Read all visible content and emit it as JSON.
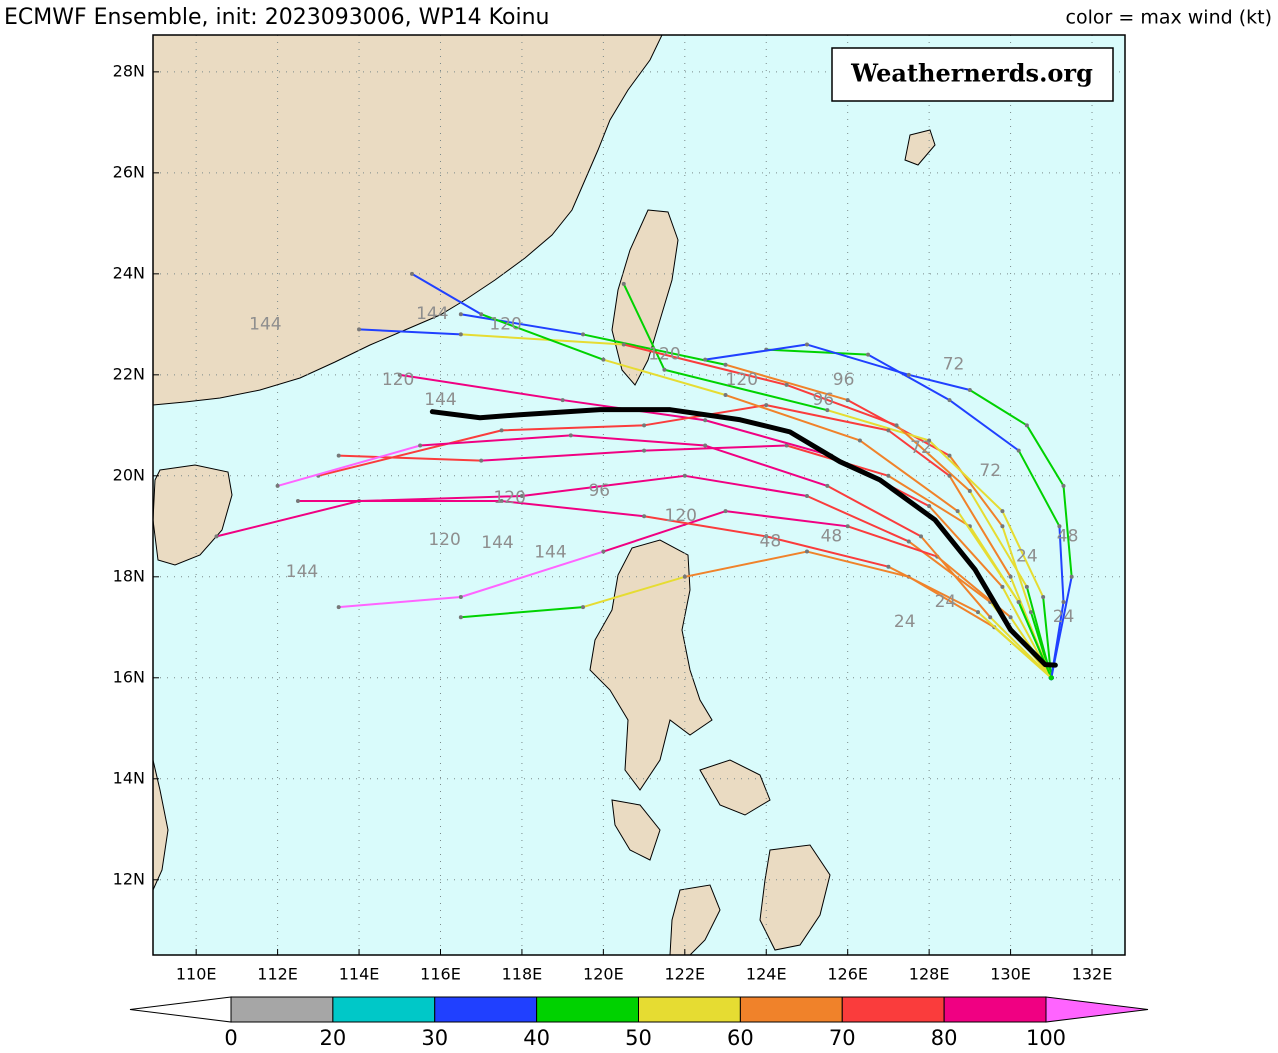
{
  "header": {
    "title": "ECMWF Ensemble, init: 2023093006, WP14 Koinu",
    "right": "color = max wind (kt)"
  },
  "watermark": "Weathernerds.org",
  "map": {
    "xlim": [
      108.94,
      132.81
    ],
    "ylim": [
      10.51,
      28.73
    ],
    "xticks": [
      {
        "value": 110,
        "label": "110E"
      },
      {
        "value": 112,
        "label": "112E"
      },
      {
        "value": 114,
        "label": "114E"
      },
      {
        "value": 116,
        "label": "116E"
      },
      {
        "value": 118,
        "label": "118E"
      },
      {
        "value": 120,
        "label": "120E"
      },
      {
        "value": 122,
        "label": "122E"
      },
      {
        "value": 124,
        "label": "124E"
      },
      {
        "value": 126,
        "label": "126E"
      },
      {
        "value": 128,
        "label": "128E"
      },
      {
        "value": 130,
        "label": "130E"
      },
      {
        "value": 132,
        "label": "132E"
      }
    ],
    "yticks": [
      {
        "value": 12,
        "label": "12N"
      },
      {
        "value": 14,
        "label": "14N"
      },
      {
        "value": 16,
        "label": "16N"
      },
      {
        "value": 18,
        "label": "18N"
      },
      {
        "value": 20,
        "label": "20N"
      },
      {
        "value": 22,
        "label": "22N"
      },
      {
        "value": 24,
        "label": "24N"
      },
      {
        "value": 26,
        "label": "26N"
      },
      {
        "value": 28,
        "label": "28N"
      }
    ],
    "grid": true,
    "ocean_color": "#d9fbfb"
  },
  "colorbar": {
    "bounds": [
      0,
      20,
      30,
      40,
      50,
      60,
      70,
      80,
      100
    ],
    "colors": [
      "#a6a6a6",
      "#00c8c8",
      "#2040ff",
      "#00d200",
      "#e6dc32",
      "#f0822a",
      "#fa3c3c",
      "#f00082"
    ],
    "under_color": "#ffffff",
    "over_color": "#ff64ff"
  },
  "tracks": [
    {
      "points": [
        [
          131,
          16
        ],
        [
          130.2,
          17.5
        ],
        [
          129,
          19
        ],
        [
          127,
          20
        ],
        [
          124.5,
          20.6
        ],
        [
          121,
          20.5
        ],
        [
          117,
          20.3
        ],
        [
          113.5,
          20.4
        ]
      ],
      "winds": [
        35,
        45,
        55,
        65,
        75,
        85,
        80,
        75
      ]
    },
    {
      "points": [
        [
          131,
          16
        ],
        [
          130.5,
          17.3
        ],
        [
          129.8,
          19
        ],
        [
          128.5,
          20.4
        ],
        [
          126,
          21.5
        ],
        [
          123,
          22.2
        ],
        [
          119.5,
          22.8
        ],
        [
          116.5,
          23.2
        ]
      ],
      "winds": [
        35,
        40,
        50,
        60,
        70,
        65,
        45,
        35
      ]
    },
    {
      "points": [
        [
          131,
          16
        ],
        [
          131.3,
          17.5
        ],
        [
          131.2,
          19
        ],
        [
          130.2,
          20.5
        ],
        [
          128.5,
          21.5
        ],
        [
          126.5,
          22.4
        ],
        [
          124,
          22.5
        ]
      ],
      "winds": [
        35,
        35,
        38,
        45,
        35,
        38,
        45
      ]
    },
    {
      "points": [
        [
          131,
          16
        ],
        [
          129.5,
          17.5
        ],
        [
          127.5,
          18.7
        ],
        [
          125,
          19.6
        ],
        [
          122,
          20
        ],
        [
          118,
          19.6
        ],
        [
          114,
          19.5
        ],
        [
          110.5,
          18.8
        ]
      ],
      "winds": [
        40,
        55,
        65,
        75,
        85,
        90,
        95,
        90
      ]
    },
    {
      "points": [
        [
          131,
          16
        ],
        [
          130,
          17.2
        ],
        [
          128.2,
          18.4
        ],
        [
          126,
          19
        ],
        [
          123,
          19.3
        ],
        [
          120,
          18.5
        ],
        [
          116.5,
          17.6
        ],
        [
          113.5,
          17.4
        ]
      ],
      "winds": [
        40,
        50,
        60,
        70,
        80,
        90,
        105,
        105
      ]
    },
    {
      "points": [
        [
          131,
          16
        ],
        [
          130.8,
          17.6
        ],
        [
          129.8,
          19.3
        ],
        [
          128,
          20.7
        ],
        [
          125.5,
          21.3
        ],
        [
          121.5,
          22.1
        ],
        [
          120.5,
          23.8
        ]
      ],
      "winds": [
        38,
        45,
        50,
        55,
        50,
        45,
        45
      ]
    },
    {
      "points": [
        [
          131,
          16
        ],
        [
          129.6,
          17
        ],
        [
          127.5,
          18
        ],
        [
          125,
          18.5
        ],
        [
          122,
          18
        ],
        [
          119.5,
          17.4
        ],
        [
          116.5,
          17.2
        ]
      ],
      "winds": [
        45,
        55,
        62,
        65,
        60,
        50,
        45
      ]
    },
    {
      "points": [
        [
          131,
          16
        ],
        [
          130.4,
          17.8
        ],
        [
          129,
          19.7
        ],
        [
          127.2,
          21
        ],
        [
          124.5,
          21.8
        ],
        [
          120.5,
          22.6
        ],
        [
          116.5,
          22.8
        ],
        [
          114,
          22.9
        ]
      ],
      "winds": [
        38,
        48,
        58,
        68,
        75,
        70,
        50,
        35
      ]
    },
    {
      "points": [
        [
          131,
          16
        ],
        [
          129.8,
          17.8
        ],
        [
          128,
          19.4
        ],
        [
          125.6,
          20.4
        ],
        [
          122.5,
          21.1
        ],
        [
          119,
          21.5
        ],
        [
          115,
          22
        ]
      ],
      "winds": [
        45,
        55,
        65,
        75,
        82,
        85,
        80
      ]
    },
    {
      "points": [
        [
          131,
          16
        ],
        [
          130,
          18
        ],
        [
          128.5,
          20
        ],
        [
          127,
          20.9
        ],
        [
          124,
          21.4
        ],
        [
          121,
          21
        ],
        [
          117.5,
          20.9
        ],
        [
          113,
          20
        ]
      ],
      "winds": [
        40,
        50,
        60,
        70,
        78,
        75,
        72,
        72
      ]
    },
    {
      "points": [
        [
          131,
          16
        ],
        [
          129.2,
          17.3
        ],
        [
          127,
          18.2
        ],
        [
          124,
          18.8
        ],
        [
          121,
          19.2
        ],
        [
          117.5,
          19.5
        ],
        [
          112.5,
          19.5
        ]
      ],
      "winds": [
        40,
        55,
        65,
        72,
        78,
        82,
        85
      ]
    },
    {
      "points": [
        [
          131,
          16
        ],
        [
          131.5,
          18
        ],
        [
          131.3,
          19.8
        ],
        [
          130.4,
          21
        ],
        [
          129,
          21.7
        ],
        [
          127.5,
          22
        ],
        [
          125,
          22.6
        ],
        [
          122.5,
          22.3
        ]
      ],
      "winds": [
        35,
        38,
        40,
        45,
        40,
        38,
        35,
        36
      ]
    },
    {
      "points": [
        [
          131,
          16
        ],
        [
          130.2,
          17.5
        ],
        [
          128.7,
          19.3
        ],
        [
          126.3,
          20.7
        ],
        [
          123,
          21.6
        ],
        [
          120,
          22.3
        ],
        [
          117,
          23.2
        ],
        [
          115.3,
          24
        ]
      ],
      "winds": [
        38,
        45,
        55,
        62,
        60,
        50,
        42,
        35
      ]
    },
    {
      "points": [
        [
          131,
          16
        ],
        [
          129.5,
          17.2
        ],
        [
          127.8,
          18.8
        ],
        [
          125.5,
          19.8
        ],
        [
          122.5,
          20.6
        ],
        [
          119.2,
          20.8
        ],
        [
          115.5,
          20.6
        ],
        [
          112,
          19.8
        ]
      ],
      "winds": [
        42,
        52,
        62,
        72,
        84,
        90,
        96,
        105
      ]
    }
  ],
  "mean_track": {
    "lon": [
      131.1,
      130.85,
      130.0,
      129.13,
      128.14,
      126.79,
      125.81,
      124.58,
      123.36,
      121.64,
      119.92,
      117.95,
      116.97,
      115.8
    ],
    "lat": [
      16.25,
      16.26,
      16.95,
      18.14,
      19.13,
      19.92,
      20.28,
      20.87,
      21.11,
      21.31,
      21.31,
      21.21,
      21.15,
      21.27
    ]
  },
  "hour_labels": [
    {
      "text": "144",
      "lon": 111.7,
      "lat": 23.0
    },
    {
      "text": "144",
      "lon": 112.6,
      "lat": 18.1
    },
    {
      "text": "120",
      "lon": 116.1,
      "lat": 18.73
    },
    {
      "text": "144",
      "lon": 117.4,
      "lat": 18.67
    },
    {
      "text": "144",
      "lon": 118.7,
      "lat": 18.48
    },
    {
      "text": "120",
      "lon": 117.7,
      "lat": 19.56
    },
    {
      "text": "96",
      "lon": 119.9,
      "lat": 19.7
    },
    {
      "text": "120",
      "lon": 121.9,
      "lat": 19.2
    },
    {
      "text": "48",
      "lon": 124.1,
      "lat": 18.7
    },
    {
      "text": "48",
      "lon": 125.6,
      "lat": 18.8
    },
    {
      "text": "24",
      "lon": 127.4,
      "lat": 17.1
    },
    {
      "text": "24",
      "lon": 128.4,
      "lat": 17.5
    },
    {
      "text": "24",
      "lon": 131.3,
      "lat": 17.2
    },
    {
      "text": "24",
      "lon": 130.4,
      "lat": 18.4
    },
    {
      "text": "48",
      "lon": 131.4,
      "lat": 18.8
    },
    {
      "text": "72",
      "lon": 128.6,
      "lat": 22.2
    },
    {
      "text": "72",
      "lon": 129.5,
      "lat": 20.1
    },
    {
      "text": "96",
      "lon": 125.9,
      "lat": 21.9
    },
    {
      "text": "96",
      "lon": 125.4,
      "lat": 21.5
    },
    {
      "text": "120",
      "lon": 121.5,
      "lat": 22.4
    },
    {
      "text": "144",
      "lon": 116.0,
      "lat": 21.5
    },
    {
      "text": "120",
      "lon": 114.96,
      "lat": 21.9
    },
    {
      "text": "120",
      "lon": 117.6,
      "lat": 23.0
    },
    {
      "text": "144",
      "lon": 115.8,
      "lat": 23.2
    },
    {
      "text": "72",
      "lon": 127.8,
      "lat": 20.55
    },
    {
      "text": "120",
      "lon": 123.4,
      "lat": 21.9
    }
  ]
}
